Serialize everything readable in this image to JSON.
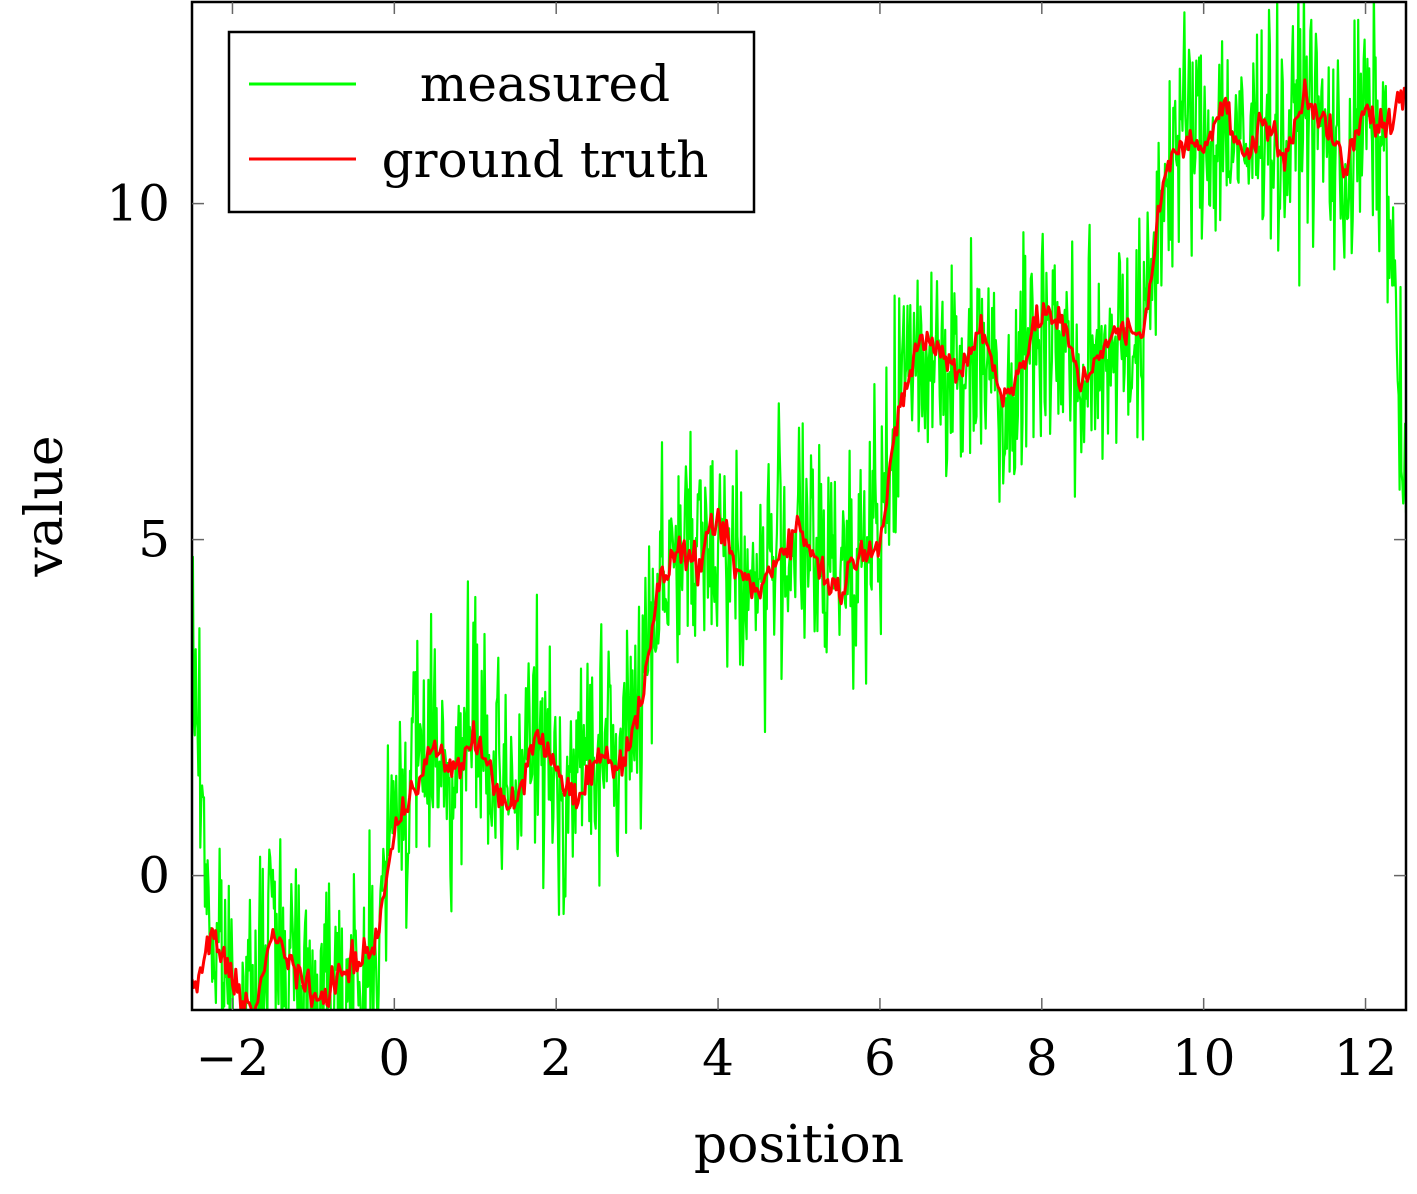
{
  "chart_data": {
    "type": "line",
    "xlabel": "position",
    "ylabel": "value",
    "xlim": [
      -2.5,
      12.5
    ],
    "ylim": [
      -2,
      13
    ],
    "x_ticks": [
      -2,
      0,
      2,
      4,
      6,
      8,
      10,
      12
    ],
    "x_tick_labels": [
      "−2",
      "0",
      "2",
      "4",
      "6",
      "8",
      "10",
      "12"
    ],
    "y_ticks": [
      0,
      5,
      10
    ],
    "y_tick_labels": [
      "0",
      "5",
      "10"
    ],
    "grid": false,
    "legend": {
      "position": "top-left"
    },
    "series": [
      {
        "name": "measured",
        "color": "#00ff00",
        "x": [
          -2.5,
          -2.25,
          -2.0,
          -1.75,
          -1.5,
          -1.25,
          -1.0,
          -0.75,
          -0.5,
          -0.25,
          0.0,
          0.25,
          0.5,
          0.75,
          1.0,
          1.25,
          1.5,
          1.75,
          2.0,
          2.25,
          2.5,
          2.75,
          3.0,
          3.25,
          3.5,
          3.75,
          4.0,
          4.25,
          4.5,
          4.75,
          5.0,
          5.25,
          5.5,
          5.75,
          6.0,
          6.25,
          6.5,
          6.75,
          7.0,
          7.25,
          7.5,
          7.75,
          8.0,
          8.25,
          8.5,
          8.75,
          9.0,
          9.25,
          9.5,
          9.75,
          10.0,
          10.25,
          10.5,
          10.75,
          11.0,
          11.25,
          11.5,
          11.75,
          12.0,
          12.25,
          12.5
        ],
        "y": [
          3.5,
          -1.1,
          -1.6,
          -2.3,
          -0.6,
          -1.4,
          -1.8,
          -1.2,
          -1.9,
          -1.3,
          0.9,
          1.6,
          2.2,
          1.3,
          2.4,
          1.0,
          1.4,
          2.1,
          1.2,
          1.5,
          2.0,
          1.6,
          2.6,
          4.4,
          4.9,
          4.6,
          5.3,
          4.5,
          4.3,
          4.9,
          5.1,
          4.4,
          4.9,
          4.8,
          5.0,
          7.2,
          7.9,
          7.8,
          7.2,
          8.2,
          7.1,
          7.6,
          8.3,
          7.9,
          7.2,
          7.8,
          8.2,
          7.8,
          10.3,
          11.2,
          10.8,
          11.2,
          10.6,
          11.5,
          10.7,
          11.6,
          11.0,
          10.4,
          11.3,
          10.8,
          5.4
        ]
      },
      {
        "name": "ground truth",
        "color": "#ff0000",
        "x": [
          -2.5,
          -2.25,
          -2.0,
          -1.75,
          -1.5,
          -1.25,
          -1.0,
          -0.75,
          -0.5,
          -0.25,
          0.0,
          0.25,
          0.5,
          0.75,
          1.0,
          1.25,
          1.5,
          1.75,
          2.0,
          2.25,
          2.5,
          2.75,
          3.0,
          3.25,
          3.5,
          3.75,
          4.0,
          4.25,
          4.5,
          4.75,
          5.0,
          5.25,
          5.5,
          5.75,
          6.0,
          6.25,
          6.5,
          6.75,
          7.0,
          7.25,
          7.5,
          7.75,
          8.0,
          8.25,
          8.5,
          8.75,
          9.0,
          9.25,
          9.5,
          9.75,
          10.0,
          10.25,
          10.5,
          10.75,
          11.0,
          11.25,
          11.5,
          11.75,
          12.0,
          12.25,
          12.5
        ],
        "y": [
          -1.8,
          -0.9,
          -1.5,
          -2.1,
          -0.9,
          -1.3,
          -1.9,
          -1.6,
          -1.3,
          -1.1,
          0.6,
          1.4,
          1.9,
          1.5,
          2.1,
          1.3,
          1.0,
          2.1,
          1.6,
          1.1,
          1.8,
          1.6,
          2.3,
          4.2,
          4.9,
          4.6,
          5.3,
          4.5,
          4.2,
          4.8,
          5.2,
          4.6,
          4.2,
          4.9,
          4.9,
          7.0,
          8.0,
          7.8,
          7.5,
          8.2,
          7.1,
          7.6,
          8.4,
          8.2,
          7.3,
          7.9,
          8.1,
          8.0,
          10.4,
          10.9,
          10.9,
          11.5,
          10.6,
          11.3,
          10.6,
          11.7,
          11.2,
          10.5,
          11.4,
          11.1,
          11.7
        ]
      }
    ]
  }
}
